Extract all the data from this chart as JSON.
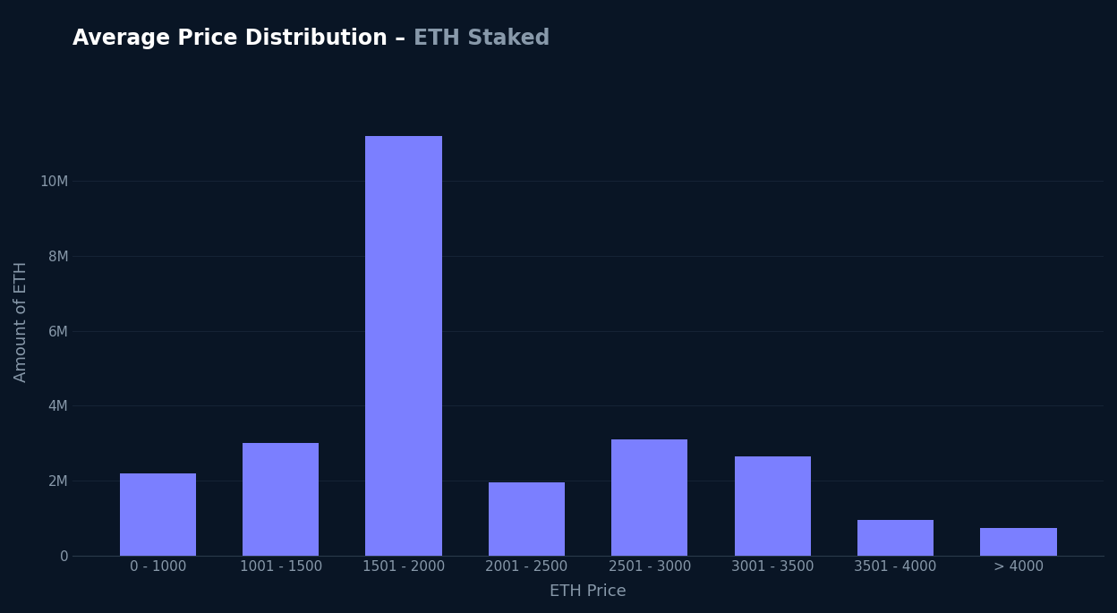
{
  "title_main": "Average Price Distribution",
  "title_sep": " – ",
  "title_sub": "ETH Staked",
  "xlabel": "ETH Price",
  "ylabel": "Amount of ETH",
  "categories": [
    "0 - 1000",
    "1001 - 1500",
    "1501 - 2000",
    "2001 - 2500",
    "2501 - 3000",
    "3001 - 3500",
    "3501 - 4000",
    "> 4000"
  ],
  "values": [
    2200000,
    3000000,
    11200000,
    1950000,
    3100000,
    2650000,
    950000,
    750000
  ],
  "bar_color": "#7B7FFF",
  "background_color": "#091525",
  "axes_background": "#091525",
  "text_color_main": "#ffffff",
  "text_color_sub": "#8899aa",
  "grid_color": "#162436",
  "tick_color": "#8899aa",
  "axis_line_color": "#2a3a4a",
  "ylim": [
    0,
    12500000
  ],
  "yticks": [
    0,
    2000000,
    4000000,
    6000000,
    8000000,
    10000000
  ],
  "ytick_labels": [
    "0",
    "2M",
    "4M",
    "6M",
    "8M",
    "10M"
  ],
  "title_fontsize": 17,
  "axis_label_fontsize": 13,
  "tick_fontsize": 11,
  "bar_width": 0.62
}
